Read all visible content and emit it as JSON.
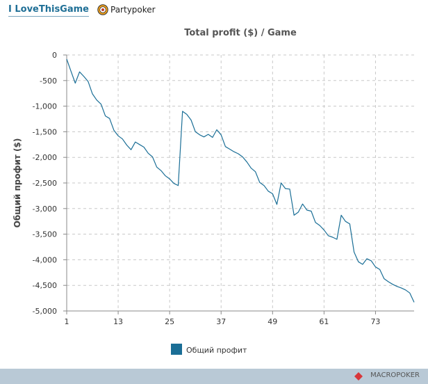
{
  "header": {
    "link_label": "I LoveThisGame",
    "site_name": "Partypoker"
  },
  "footer": {
    "brand": "MACROPOKER"
  },
  "colors": {
    "series": "#1a6e96",
    "brand_accent": "#d8363a",
    "footer_bg": "#b9c9d6"
  },
  "chart_data": {
    "type": "line",
    "title": "Total profit ($) / Game",
    "xlabel": "",
    "ylabel": "Общий профит ($)",
    "xlim": [
      1,
      82
    ],
    "ylim": [
      -5000,
      0
    ],
    "x_ticks": [
      1,
      13,
      25,
      37,
      49,
      61,
      73
    ],
    "y_ticks": [
      0,
      -500,
      -1000,
      -1500,
      -2000,
      -2500,
      -3000,
      -3500,
      -4000,
      -4500,
      -5000
    ],
    "y_tick_labels": [
      "0",
      "-500",
      "-1,000",
      "-1,500",
      "-2,000",
      "-2,500",
      "-3,000",
      "-3,500",
      "-4,000",
      "-4,500",
      "-5,000"
    ],
    "grid": true,
    "legend_position": "bottom-center",
    "series": [
      {
        "name": "Общий профит",
        "x": [
          1,
          2,
          3,
          4,
          5,
          6,
          7,
          8,
          9,
          10,
          11,
          12,
          13,
          14,
          15,
          16,
          17,
          18,
          19,
          20,
          21,
          22,
          23,
          24,
          25,
          26,
          27,
          28,
          29,
          30,
          31,
          32,
          33,
          34,
          35,
          36,
          37,
          38,
          39,
          40,
          41,
          42,
          43,
          44,
          45,
          46,
          47,
          48,
          49,
          50,
          51,
          52,
          53,
          54,
          55,
          56,
          57,
          58,
          59,
          60,
          61,
          62,
          63,
          64,
          65,
          66,
          67,
          68,
          69,
          70,
          71,
          72,
          73,
          74,
          75,
          76,
          77,
          78,
          79,
          80,
          81,
          82
        ],
        "values": [
          -80,
          -320,
          -550,
          -330,
          -420,
          -520,
          -760,
          -880,
          -960,
          -1190,
          -1240,
          -1470,
          -1580,
          -1640,
          -1760,
          -1850,
          -1700,
          -1750,
          -1800,
          -1920,
          -1990,
          -2190,
          -2260,
          -2360,
          -2420,
          -2510,
          -2550,
          -1100,
          -1160,
          -1270,
          -1500,
          -1560,
          -1600,
          -1550,
          -1610,
          -1460,
          -1560,
          -1790,
          -1840,
          -1890,
          -1930,
          -1990,
          -2090,
          -2210,
          -2280,
          -2490,
          -2550,
          -2660,
          -2710,
          -2920,
          -2500,
          -2610,
          -2620,
          -3130,
          -3070,
          -2910,
          -3030,
          -3050,
          -3270,
          -3330,
          -3420,
          -3530,
          -3560,
          -3600,
          -3130,
          -3250,
          -3300,
          -3850,
          -4040,
          -4090,
          -3980,
          -4020,
          -4140,
          -4190,
          -4370,
          -4430,
          -4480,
          -4520,
          -4550,
          -4590,
          -4650,
          -4830
        ]
      }
    ]
  }
}
